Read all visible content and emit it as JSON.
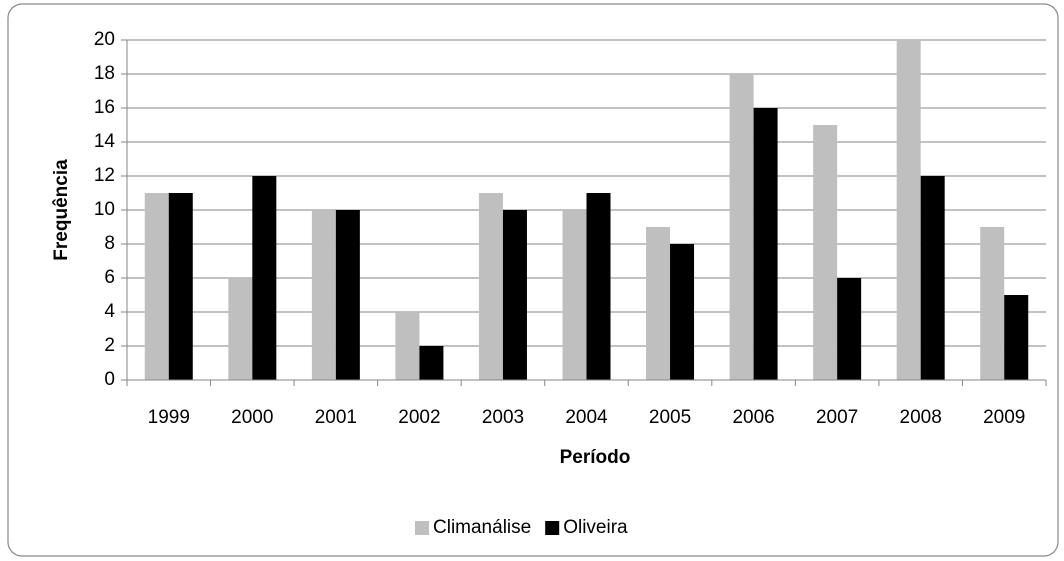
{
  "chart_data": {
    "type": "bar",
    "x_label": "Período",
    "y_label": "Frequência",
    "categories": [
      "1999",
      "2000",
      "2001",
      "2002",
      "2003",
      "2004",
      "2005",
      "2006",
      "2007",
      "2008",
      "2009"
    ],
    "series": [
      {
        "name": "Climanálise",
        "color": "#bfbfbf",
        "values": [
          11,
          6,
          10,
          4,
          11,
          10,
          9,
          18,
          15,
          20,
          9
        ]
      },
      {
        "name": "Oliveira",
        "color": "#000000",
        "values": [
          11,
          12,
          10,
          2,
          10,
          11,
          8,
          16,
          6,
          12,
          5
        ]
      }
    ],
    "ylim": [
      0,
      20
    ],
    "yticks": [
      0,
      2,
      4,
      6,
      8,
      10,
      12,
      14,
      16,
      18,
      20
    ],
    "grid": true,
    "legend": "bottom"
  }
}
